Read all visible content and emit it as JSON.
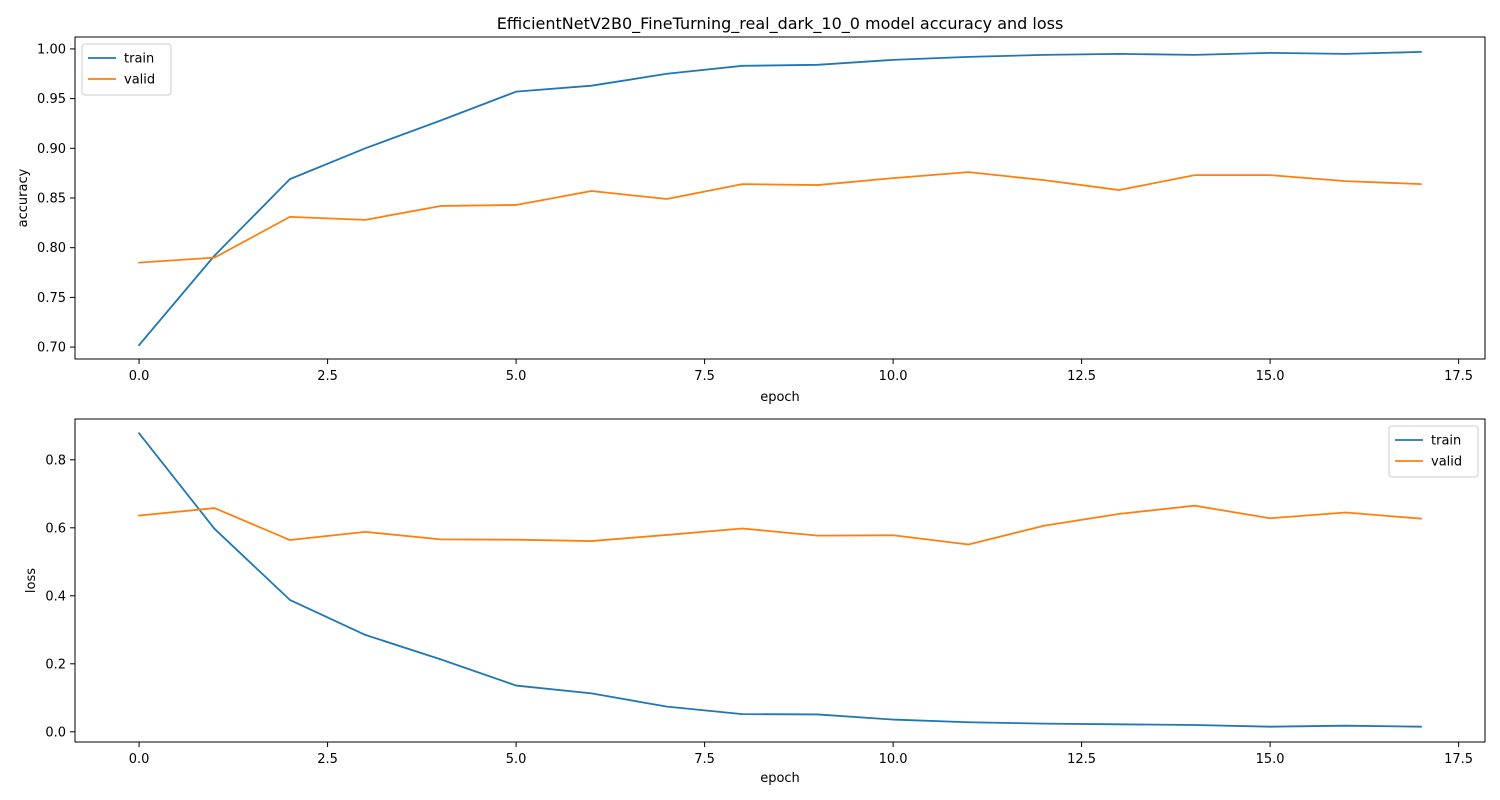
{
  "title": "EfficientNetV2B0_FineTurning_real_dark_10_0 model accuracy and loss",
  "chart_data": [
    {
      "type": "line",
      "id": "accuracy",
      "title": "EfficientNetV2B0_FineTurning_real_dark_10_0 model accuracy and loss",
      "xlabel": "epoch",
      "ylabel": "accuracy",
      "xlim": [
        -0.85,
        17.85
      ],
      "ylim": [
        0.688,
        1.012
      ],
      "xticks": [
        0.0,
        2.5,
        5.0,
        7.5,
        10.0,
        12.5,
        15.0,
        17.5
      ],
      "xtick_labels": [
        "0.0",
        "2.5",
        "5.0",
        "7.5",
        "10.0",
        "12.5",
        "15.0",
        "17.5"
      ],
      "yticks": [
        0.7,
        0.75,
        0.8,
        0.85,
        0.9,
        0.95,
        1.0
      ],
      "ytick_labels": [
        "0.70",
        "0.75",
        "0.80",
        "0.85",
        "0.90",
        "0.95",
        "1.00"
      ],
      "grid": false,
      "legend": "upper-left",
      "x": [
        0,
        1,
        2,
        3,
        4,
        5,
        6,
        7,
        8,
        9,
        10,
        11,
        12,
        13,
        14,
        15,
        16,
        17
      ],
      "series": [
        {
          "name": "train",
          "color": "#1f77b4",
          "values": [
            0.702,
            0.792,
            0.869,
            0.9,
            0.928,
            0.957,
            0.963,
            0.975,
            0.983,
            0.984,
            0.989,
            0.992,
            0.994,
            0.995,
            0.994,
            0.996,
            0.995,
            0.997
          ]
        },
        {
          "name": "valid",
          "color": "#ff7f0e",
          "values": [
            0.785,
            0.79,
            0.831,
            0.828,
            0.842,
            0.843,
            0.857,
            0.849,
            0.864,
            0.863,
            0.87,
            0.876,
            0.868,
            0.858,
            0.873,
            0.873,
            0.867,
            0.864
          ]
        }
      ]
    },
    {
      "type": "line",
      "id": "loss",
      "title": "",
      "xlabel": "epoch",
      "ylabel": "loss",
      "xlim": [
        -0.85,
        17.85
      ],
      "ylim": [
        -0.03,
        0.92
      ],
      "xticks": [
        0.0,
        2.5,
        5.0,
        7.5,
        10.0,
        12.5,
        15.0,
        17.5
      ],
      "xtick_labels": [
        "0.0",
        "2.5",
        "5.0",
        "7.5",
        "10.0",
        "12.5",
        "15.0",
        "17.5"
      ],
      "yticks": [
        0.0,
        0.2,
        0.4,
        0.6,
        0.8
      ],
      "ytick_labels": [
        "0.0",
        "0.2",
        "0.4",
        "0.6",
        "0.8"
      ],
      "grid": false,
      "legend": "upper-right",
      "x": [
        0,
        1,
        2,
        3,
        4,
        5,
        6,
        7,
        8,
        9,
        10,
        11,
        12,
        13,
        14,
        15,
        16,
        17
      ],
      "series": [
        {
          "name": "train",
          "color": "#1f77b4",
          "values": [
            0.878,
            0.597,
            0.388,
            0.285,
            0.213,
            0.136,
            0.113,
            0.074,
            0.052,
            0.051,
            0.036,
            0.028,
            0.024,
            0.022,
            0.02,
            0.015,
            0.018,
            0.015
          ]
        },
        {
          "name": "valid",
          "color": "#ff7f0e",
          "values": [
            0.636,
            0.658,
            0.564,
            0.588,
            0.566,
            0.565,
            0.561,
            0.579,
            0.598,
            0.577,
            0.578,
            0.551,
            0.606,
            0.641,
            0.665,
            0.628,
            0.645,
            0.627
          ]
        }
      ]
    }
  ]
}
